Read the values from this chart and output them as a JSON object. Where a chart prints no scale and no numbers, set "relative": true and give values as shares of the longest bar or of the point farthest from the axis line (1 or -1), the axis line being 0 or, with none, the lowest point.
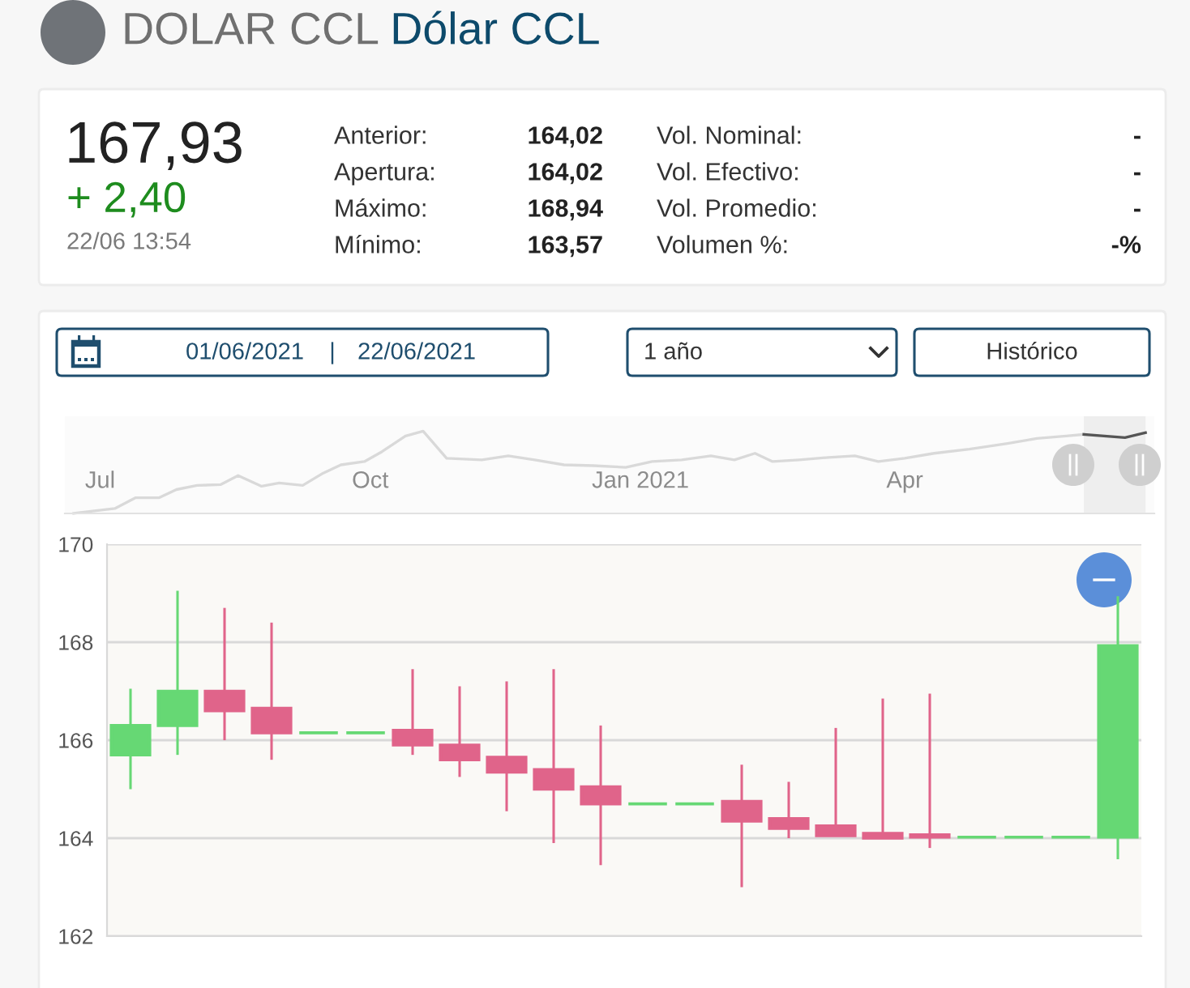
{
  "chart_data": [
    {
      "type": "other",
      "title": "DOLAR CCL",
      "subtitle": "Dólar CCL",
      "annotations": [
        "167,93",
        "+ 2,40",
        "22/06 13:54",
        "Anterior:",
        "164,02",
        "Apertura:",
        "164,02",
        "Máximo:",
        "168,94",
        "Mínimo:",
        "163,57",
        "Vol. Nominal:",
        "-",
        "Vol. Efectivo:",
        "-",
        "Vol. Promedio:",
        "-",
        "Volumen %:",
        "-%"
      ]
    },
    {
      "type": "other",
      "annotations": [
        "01/06/2021",
        "|",
        "22/06/2021",
        "1 año",
        "Histórico"
      ]
    },
    {
      "type": "line",
      "relative": true,
      "series": [
        {
          "color": "#d9d9d9",
          "x": [
            "2020-06-22",
            "2020-07-06",
            "2020-07-13",
            "2020-07-21",
            "2020-07-27",
            "2020-08-03",
            "2020-08-11",
            "2020-08-17",
            "2020-08-25",
            "2020-08-31",
            "2020-09-08",
            "2020-09-15",
            "2020-09-21",
            "2020-09-29",
            "2020-10-05",
            "2020-10-13",
            "2020-10-19",
            "2020-10-27",
            "2020-11-08",
            "2020-11-17",
            "2020-11-26",
            "2020-12-06",
            "2020-12-16",
            "2020-12-27",
            "2021-01-05",
            "2021-01-15",
            "2021-01-25",
            "2021-02-02",
            "2021-02-09",
            "2021-02-15",
            "2021-02-24",
            "2021-03-06",
            "2021-03-15",
            "2021-03-23",
            "2021-04-01",
            "2021-04-11",
            "2021-04-23",
            "2021-05-06",
            "2021-05-16",
            "2021-05-26",
            "2021-06-01"
          ],
          "values": [
            0,
            0.06,
            0.19,
            0.19,
            0.29,
            0.34,
            0.35,
            0.46,
            0.33,
            0.37,
            0.34,
            0.49,
            0.59,
            0.63,
            0.75,
            0.94,
            1,
            0.67,
            0.65,
            0.7,
            0.65,
            0.59,
            0.58,
            0.56,
            0.63,
            0.65,
            0.7,
            0.65,
            0.73,
            0.63,
            0.65,
            0.68,
            0.7,
            0.63,
            0.67,
            0.73,
            0.78,
            0.85,
            0.91,
            0.94,
            0.96
          ]
        },
        {
          "color": "#555555",
          "x": [
            "2021-06-01",
            "2021-06-15",
            "2021-06-22"
          ],
          "values": [
            0.96,
            0.92,
            0.98
          ]
        }
      ],
      "xlim": [
        "2020-06-19",
        "2021-06-25"
      ],
      "xticks": [
        {
          "value": "2020-07-01",
          "label": "Jul"
        },
        {
          "value": "2020-10-01",
          "label": "Oct"
        },
        {
          "value": "2021-01-01",
          "label": "Jan 2021"
        },
        {
          "value": "2021-04-01",
          "label": "Apr"
        }
      ],
      "bands": [
        {
          "axis": "x",
          "from": "2021-06-01",
          "to": "2021-06-22",
          "color": "#eeeeee"
        }
      ]
    },
    {
      "type": "candlestick",
      "categories": [
        null,
        null,
        null,
        null,
        null,
        null,
        null,
        null,
        null,
        null,
        null,
        null,
        null,
        null,
        null,
        null,
        null,
        null,
        null,
        null,
        null,
        null
      ],
      "ohlc": [
        [
          165.7,
          167.05,
          165.0,
          166.3
        ],
        [
          166.3,
          169.05,
          165.7,
          167.0
        ],
        [
          167.0,
          168.7,
          166.0,
          166.6
        ],
        [
          166.65,
          168.4,
          165.6,
          166.15
        ],
        [
          166.15,
          166.15,
          166.15,
          166.15
        ],
        [
          166.15,
          166.15,
          166.15,
          166.15
        ],
        [
          166.2,
          167.45,
          165.7,
          165.9
        ],
        [
          165.9,
          167.1,
          165.25,
          165.6
        ],
        [
          165.65,
          167.2,
          164.55,
          165.35
        ],
        [
          165.4,
          167.45,
          163.9,
          165.0
        ],
        [
          165.05,
          166.3,
          163.45,
          164.7
        ],
        [
          164.7,
          164.7,
          164.7,
          164.7
        ],
        [
          164.7,
          164.7,
          164.7,
          164.7
        ],
        [
          164.75,
          165.5,
          163.0,
          164.35
        ],
        [
          164.4,
          165.15,
          164.0,
          164.2
        ],
        [
          164.25,
          166.25,
          164.05,
          164.05
        ],
        [
          164.1,
          166.85,
          164.0,
          164.0
        ],
        [
          164.07,
          166.95,
          163.8,
          164.02
        ],
        [
          164.02,
          164.02,
          164.02,
          164.02
        ],
        [
          164.02,
          164.02,
          164.02,
          164.02
        ],
        [
          164.02,
          164.02,
          164.02,
          164.02
        ],
        [
          164.02,
          168.94,
          163.57,
          167.93
        ]
      ],
      "colors": [
        "#66d874",
        "#66d874",
        "#e0648a",
        "#e0648a",
        "#66d874",
        "#66d874",
        "#e0648a",
        "#e0648a",
        "#e0648a",
        "#e0648a",
        "#e0648a",
        "#66d874",
        "#66d874",
        "#e0648a",
        "#e0648a",
        "#e0648a",
        "#e0648a",
        "#e0648a",
        "#66d874",
        "#66d874",
        "#66d874",
        "#66d874"
      ],
      "ylim": [
        162,
        170
      ],
      "yticks": [
        162,
        164,
        166,
        168,
        170
      ],
      "grid": "y",
      "tick_labels": "y"
    }
  ]
}
